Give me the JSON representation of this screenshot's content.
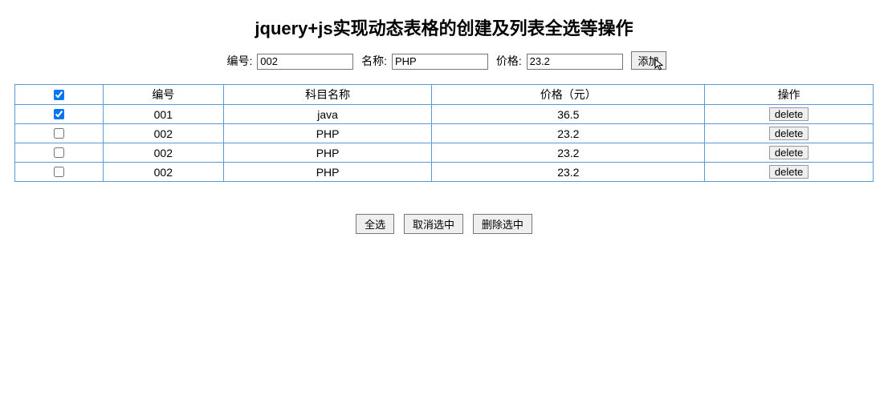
{
  "title": "jquery+js实现动态表格的创建及列表全选等操作",
  "form": {
    "id_label": "编号:",
    "id_value": "002",
    "name_label": "名称:",
    "name_value": "PHP",
    "price_label": "价格:",
    "price_value": "23.2",
    "add_label": "添加"
  },
  "table": {
    "header_check_checked": true,
    "columns": {
      "id": "编号",
      "name": "科目名称",
      "price": "价格（元）",
      "op": "操作"
    },
    "delete_label": "delete",
    "rows": [
      {
        "checked": true,
        "id": "001",
        "name": "java",
        "price": "36.5"
      },
      {
        "checked": false,
        "id": "002",
        "name": "PHP",
        "price": "23.2"
      },
      {
        "checked": false,
        "id": "002",
        "name": "PHP",
        "price": "23.2"
      },
      {
        "checked": false,
        "id": "002",
        "name": "PHP",
        "price": "23.2"
      }
    ],
    "border_color": "#5b9bd5"
  },
  "bottom": {
    "select_all": "全选",
    "deselect_all": "取消选中",
    "delete_selected": "删除选中"
  }
}
